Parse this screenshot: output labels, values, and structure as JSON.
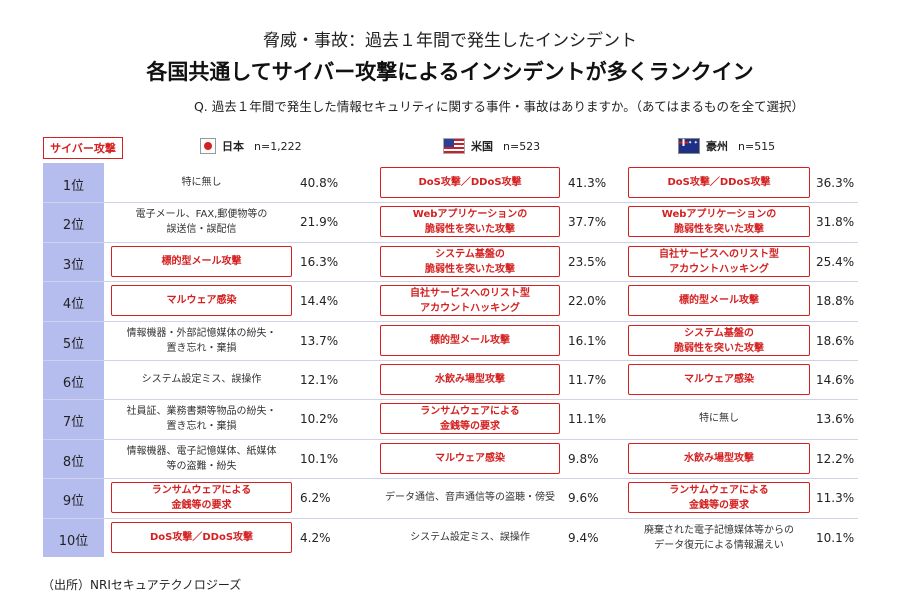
{
  "header": {
    "subtitle": "脅威・事故：過去１年間で発生したインシデント",
    "title": "各国共通してサイバー攻撃によるインシデントが多くランクイン",
    "question": "Q. 過去１年間で発生した情報セキュリティに関する事件・事故はありますか。（あてはまるものを全て選択）"
  },
  "legend_label": "サイバー攻撃",
  "source": "（出所）NRIセキュアテクノロジーズ",
  "colors": {
    "highlight": "#d42020",
    "rank_bar": "#b5bdee"
  },
  "chart_data": {
    "type": "table",
    "title": "各国共通してサイバー攻撃によるインシデントが多くランクイン",
    "ranks": [
      "1位",
      "2位",
      "3位",
      "4位",
      "5位",
      "6位",
      "7位",
      "8位",
      "9位",
      "10位"
    ],
    "countries": [
      {
        "name": "日本",
        "n": "n=1,222",
        "flag": "jp-flag-icon",
        "items": [
          {
            "label": "特に無し",
            "value": "40.8%",
            "cyber": false
          },
          {
            "label": "電子メール、FAX,郵便物等の\n誤送信・誤配信",
            "value": "21.9%",
            "cyber": false
          },
          {
            "label": "標的型メール攻撃",
            "value": "16.3%",
            "cyber": true
          },
          {
            "label": "マルウェア感染",
            "value": "14.4%",
            "cyber": true
          },
          {
            "label": "情報機器・外部記憶媒体の紛失・\n置き忘れ・棄損",
            "value": "13.7%",
            "cyber": false
          },
          {
            "label": "システム設定ミス、誤操作",
            "value": "12.1%",
            "cyber": false
          },
          {
            "label": "社員証、業務書類等物品の紛失・\n置き忘れ・棄損",
            "value": "10.2%",
            "cyber": false
          },
          {
            "label": "情報機器、電子記憶媒体、紙媒体\n等の盗難・紛失",
            "value": "10.1%",
            "cyber": false
          },
          {
            "label": "ランサムウェアによる\n金銭等の要求",
            "value": "6.2%",
            "cyber": true
          },
          {
            "label": "DoS攻撃／DDoS攻撃",
            "value": "4.2%",
            "cyber": true
          }
        ]
      },
      {
        "name": "米国",
        "n": "n=523",
        "flag": "us-flag-icon",
        "items": [
          {
            "label": "DoS攻撃／DDoS攻撃",
            "value": "41.3%",
            "cyber": true
          },
          {
            "label": "Webアプリケーションの\n脆弱性を突いた攻撃",
            "value": "37.7%",
            "cyber": true
          },
          {
            "label": "システム基盤の\n脆弱性を突いた攻撃",
            "value": "23.5%",
            "cyber": true
          },
          {
            "label": "自社サービスへのリスト型\nアカウントハッキング",
            "value": "22.0%",
            "cyber": true
          },
          {
            "label": "標的型メール攻撃",
            "value": "16.1%",
            "cyber": true
          },
          {
            "label": "水飲み場型攻撃",
            "value": "11.7%",
            "cyber": true
          },
          {
            "label": "ランサムウェアによる\n金銭等の要求",
            "value": "11.1%",
            "cyber": true
          },
          {
            "label": "マルウェア感染",
            "value": "9.8%",
            "cyber": true
          },
          {
            "label": "データ通信、音声通信等の盗聴・傍受",
            "value": "9.6%",
            "cyber": false
          },
          {
            "label": "システム設定ミス、誤操作",
            "value": "9.4%",
            "cyber": false
          }
        ]
      },
      {
        "name": "豪州",
        "n": "n=515",
        "flag": "au-flag-icon",
        "items": [
          {
            "label": "DoS攻撃／DDoS攻撃",
            "value": "36.3%",
            "cyber": true
          },
          {
            "label": "Webアプリケーションの\n脆弱性を突いた攻撃",
            "value": "31.8%",
            "cyber": true
          },
          {
            "label": "自社サービスへのリスト型\nアカウントハッキング",
            "value": "25.4%",
            "cyber": true
          },
          {
            "label": "標的型メール攻撃",
            "value": "18.8%",
            "cyber": true
          },
          {
            "label": "システム基盤の\n脆弱性を突いた攻撃",
            "value": "18.6%",
            "cyber": true
          },
          {
            "label": "マルウェア感染",
            "value": "14.6%",
            "cyber": true
          },
          {
            "label": "特に無し",
            "value": "13.6%",
            "cyber": false
          },
          {
            "label": "水飲み場型攻撃",
            "value": "12.2%",
            "cyber": true
          },
          {
            "label": "ランサムウェアによる\n金銭等の要求",
            "value": "11.3%",
            "cyber": true
          },
          {
            "label": "廃棄された電子記憶媒体等からの\nデータ復元による情報漏えい",
            "value": "10.1%",
            "cyber": false
          }
        ]
      }
    ]
  }
}
